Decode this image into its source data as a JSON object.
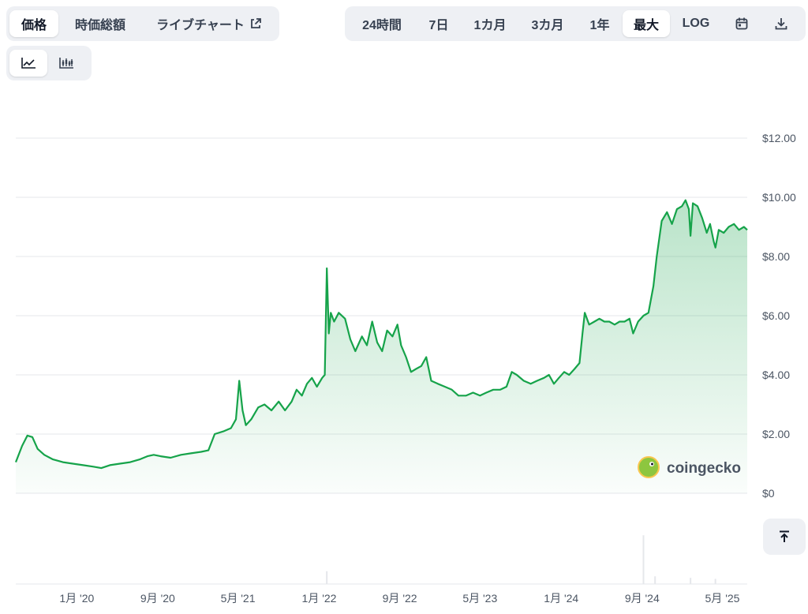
{
  "tabs_left": [
    {
      "label": "価格",
      "active": true
    },
    {
      "label": "時価総額",
      "active": false
    },
    {
      "label": "ライブチャート",
      "active": false,
      "icon": "external-link-icon"
    }
  ],
  "tabs_right": [
    {
      "label": "24時間",
      "active": false
    },
    {
      "label": "7日",
      "active": false
    },
    {
      "label": "1カ月",
      "active": false
    },
    {
      "label": "3カ月",
      "active": false
    },
    {
      "label": "1年",
      "active": false
    },
    {
      "label": "最大",
      "active": true
    },
    {
      "label": "LOG",
      "active": false
    }
  ],
  "icons": {
    "calendar": "calendar-icon",
    "download": "download-icon",
    "line_view": "line-chart-icon",
    "candle_view": "candlestick-chart-icon",
    "back_to_top": "arrow-up-to-line-icon"
  },
  "watermark": "coingecko",
  "colors": {
    "line": "#16a34a",
    "fill_top": "#16a34a",
    "grid": "#e5e7eb",
    "active_bg": "#ffffff",
    "tab_bg": "#eef0f4"
  },
  "chart_data": {
    "type": "area",
    "title": "",
    "xlabel": "",
    "ylabel": "",
    "ylim": [
      0,
      12
    ],
    "y_ticks": [
      0,
      2,
      4,
      6,
      8,
      10,
      12
    ],
    "y_tick_labels": [
      "$0",
      "$2.00",
      "$4.00",
      "$6.00",
      "$8.00",
      "$10.00",
      "$12.00"
    ],
    "x_range": [
      "2019-07-01",
      "2025-07-15"
    ],
    "x_ticks": [
      {
        "date": "2020-01-01",
        "label": "1月 '20"
      },
      {
        "date": "2020-09-01",
        "label": "9月 '20"
      },
      {
        "date": "2021-05-01",
        "label": "5月 '21"
      },
      {
        "date": "2022-01-01",
        "label": "1月 '22"
      },
      {
        "date": "2022-09-01",
        "label": "9月 '22"
      },
      {
        "date": "2023-05-01",
        "label": "5月 '23"
      },
      {
        "date": "2024-01-01",
        "label": "1月 '24"
      },
      {
        "date": "2024-09-01",
        "label": "9月 '24"
      },
      {
        "date": "2025-05-01",
        "label": "5月 '25"
      }
    ],
    "grid": true,
    "series": [
      {
        "points": [
          [
            "2019-07-01",
            1.05
          ],
          [
            "2019-07-20",
            1.6
          ],
          [
            "2019-08-05",
            1.95
          ],
          [
            "2019-08-20",
            1.9
          ],
          [
            "2019-09-05",
            1.5
          ],
          [
            "2019-09-25",
            1.3
          ],
          [
            "2019-10-20",
            1.15
          ],
          [
            "2019-11-20",
            1.05
          ],
          [
            "2019-12-20",
            1.0
          ],
          [
            "2020-01-20",
            0.95
          ],
          [
            "2020-02-20",
            0.9
          ],
          [
            "2020-03-15",
            0.85
          ],
          [
            "2020-04-10",
            0.95
          ],
          [
            "2020-05-10",
            1.0
          ],
          [
            "2020-06-10",
            1.05
          ],
          [
            "2020-07-10",
            1.15
          ],
          [
            "2020-08-01",
            1.25
          ],
          [
            "2020-08-20",
            1.3
          ],
          [
            "2020-09-10",
            1.25
          ],
          [
            "2020-10-10",
            1.2
          ],
          [
            "2020-11-10",
            1.3
          ],
          [
            "2020-12-10",
            1.35
          ],
          [
            "2021-01-10",
            1.4
          ],
          [
            "2021-02-01",
            1.45
          ],
          [
            "2021-02-20",
            2.0
          ],
          [
            "2021-03-20",
            2.1
          ],
          [
            "2021-04-10",
            2.2
          ],
          [
            "2021-04-25",
            2.5
          ],
          [
            "2021-05-05",
            3.8
          ],
          [
            "2021-05-15",
            2.8
          ],
          [
            "2021-05-25",
            2.3
          ],
          [
            "2021-06-10",
            2.5
          ],
          [
            "2021-07-01",
            2.9
          ],
          [
            "2021-07-20",
            3.0
          ],
          [
            "2021-08-10",
            2.8
          ],
          [
            "2021-09-01",
            3.1
          ],
          [
            "2021-09-20",
            2.8
          ],
          [
            "2021-10-10",
            3.1
          ],
          [
            "2021-10-25",
            3.5
          ],
          [
            "2021-11-10",
            3.3
          ],
          [
            "2021-11-25",
            3.7
          ],
          [
            "2021-12-10",
            3.9
          ],
          [
            "2021-12-25",
            3.6
          ],
          [
            "2022-01-10",
            3.9
          ],
          [
            "2022-01-18",
            4.0
          ],
          [
            "2022-01-24",
            7.6
          ],
          [
            "2022-01-30",
            5.4
          ],
          [
            "2022-02-05",
            6.1
          ],
          [
            "2022-02-15",
            5.8
          ],
          [
            "2022-03-01",
            6.1
          ],
          [
            "2022-03-20",
            5.9
          ],
          [
            "2022-04-05",
            5.2
          ],
          [
            "2022-04-20",
            4.8
          ],
          [
            "2022-05-10",
            5.3
          ],
          [
            "2022-05-25",
            5.0
          ],
          [
            "2022-06-10",
            5.8
          ],
          [
            "2022-06-25",
            5.1
          ],
          [
            "2022-07-10",
            4.8
          ],
          [
            "2022-07-25",
            5.5
          ],
          [
            "2022-08-10",
            5.3
          ],
          [
            "2022-08-25",
            5.7
          ],
          [
            "2022-09-05",
            5.0
          ],
          [
            "2022-09-20",
            4.6
          ],
          [
            "2022-10-05",
            4.1
          ],
          [
            "2022-10-20",
            4.2
          ],
          [
            "2022-11-05",
            4.3
          ],
          [
            "2022-11-20",
            4.6
          ],
          [
            "2022-12-05",
            3.8
          ],
          [
            "2022-12-25",
            3.7
          ],
          [
            "2023-01-15",
            3.6
          ],
          [
            "2023-02-05",
            3.5
          ],
          [
            "2023-02-25",
            3.3
          ],
          [
            "2023-03-20",
            3.3
          ],
          [
            "2023-04-10",
            3.4
          ],
          [
            "2023-05-01",
            3.3
          ],
          [
            "2023-05-20",
            3.4
          ],
          [
            "2023-06-10",
            3.5
          ],
          [
            "2023-07-01",
            3.5
          ],
          [
            "2023-07-20",
            3.6
          ],
          [
            "2023-08-05",
            4.1
          ],
          [
            "2023-08-20",
            4.0
          ],
          [
            "2023-09-10",
            3.8
          ],
          [
            "2023-10-01",
            3.7
          ],
          [
            "2023-10-20",
            3.8
          ],
          [
            "2023-11-10",
            3.9
          ],
          [
            "2023-11-25",
            4.0
          ],
          [
            "2023-12-10",
            3.7
          ],
          [
            "2023-12-25",
            3.9
          ],
          [
            "2024-01-10",
            4.1
          ],
          [
            "2024-01-25",
            4.0
          ],
          [
            "2024-02-10",
            4.2
          ],
          [
            "2024-02-25",
            4.4
          ],
          [
            "2024-03-05",
            5.4
          ],
          [
            "2024-03-12",
            6.1
          ],
          [
            "2024-03-25",
            5.7
          ],
          [
            "2024-04-10",
            5.8
          ],
          [
            "2024-04-25",
            5.9
          ],
          [
            "2024-05-10",
            5.8
          ],
          [
            "2024-05-25",
            5.8
          ],
          [
            "2024-06-10",
            5.7
          ],
          [
            "2024-06-25",
            5.8
          ],
          [
            "2024-07-10",
            5.8
          ],
          [
            "2024-07-25",
            5.9
          ],
          [
            "2024-08-05",
            5.4
          ],
          [
            "2024-08-20",
            5.8
          ],
          [
            "2024-09-05",
            6.0
          ],
          [
            "2024-09-20",
            6.1
          ],
          [
            "2024-10-05",
            7.0
          ],
          [
            "2024-10-15",
            8.0
          ],
          [
            "2024-10-30",
            9.2
          ],
          [
            "2024-11-15",
            9.5
          ],
          [
            "2024-11-30",
            9.1
          ],
          [
            "2024-12-15",
            9.6
          ],
          [
            "2024-12-30",
            9.7
          ],
          [
            "2025-01-10",
            9.9
          ],
          [
            "2025-01-20",
            9.6
          ],
          [
            "2025-01-25",
            8.7
          ],
          [
            "2025-02-01",
            9.8
          ],
          [
            "2025-02-15",
            9.7
          ],
          [
            "2025-03-01",
            9.3
          ],
          [
            "2025-03-15",
            8.8
          ],
          [
            "2025-03-25",
            9.1
          ],
          [
            "2025-04-05",
            8.5
          ],
          [
            "2025-04-10",
            8.3
          ],
          [
            "2025-04-20",
            8.9
          ],
          [
            "2025-05-05",
            8.8
          ],
          [
            "2025-05-20",
            9.0
          ],
          [
            "2025-06-05",
            9.1
          ],
          [
            "2025-06-20",
            8.9
          ],
          [
            "2025-07-05",
            9.0
          ],
          [
            "2025-07-15",
            8.9
          ]
        ]
      }
    ],
    "volume": {
      "bars": [
        [
          "2022-01-24",
          0.25
        ],
        [
          "2024-09-05",
          0.95
        ],
        [
          "2024-10-10",
          0.15
        ],
        [
          "2025-01-25",
          0.12
        ],
        [
          "2025-04-10",
          0.1
        ]
      ]
    }
  }
}
